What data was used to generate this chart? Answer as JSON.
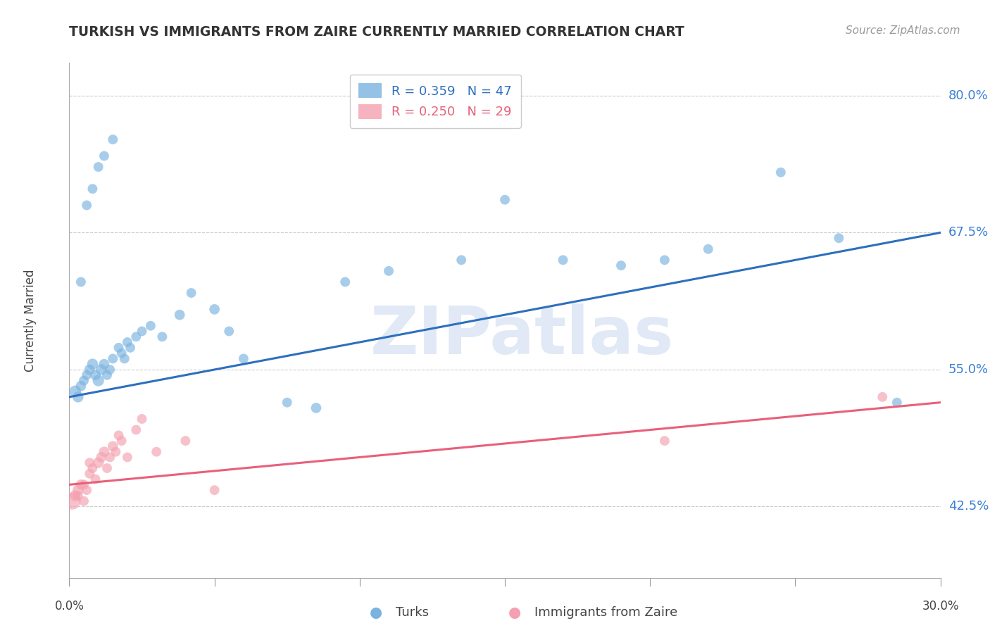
{
  "title": "TURKISH VS IMMIGRANTS FROM ZAIRE CURRENTLY MARRIED CORRELATION CHART",
  "source": "Source: ZipAtlas.com",
  "ylabel": "Currently Married",
  "y_ticks": [
    42.5,
    55.0,
    67.5,
    80.0
  ],
  "x_min": 0.0,
  "x_max": 30.0,
  "y_min": 36.0,
  "y_max": 83.0,
  "legend_entry_1": "R = 0.359   N = 47",
  "legend_entry_2": "R = 0.250   N = 29",
  "legend_labels": [
    "Turks",
    "Immigrants from Zaire"
  ],
  "blue_color": "#7ab3e0",
  "pink_color": "#f4a0b0",
  "blue_line_color": "#2d6fbe",
  "pink_line_color": "#e8607a",
  "ytick_color": "#3a7fd5",
  "blue_scatter_x": [
    0.2,
    0.3,
    0.4,
    0.5,
    0.6,
    0.7,
    0.8,
    0.9,
    1.0,
    1.1,
    1.2,
    1.3,
    1.4,
    1.5,
    1.7,
    1.8,
    1.9,
    2.0,
    2.1,
    2.3,
    2.5,
    2.8,
    3.2,
    3.8,
    4.2,
    5.0,
    5.5,
    6.0,
    7.5,
    8.5,
    9.5,
    11.0,
    13.5,
    15.0,
    17.0,
    19.0,
    20.5,
    22.0,
    24.5,
    26.5,
    28.5,
    0.4,
    0.6,
    0.8,
    1.0,
    1.2,
    1.5
  ],
  "blue_scatter_y": [
    53.0,
    52.5,
    53.5,
    54.0,
    54.5,
    55.0,
    55.5,
    54.5,
    54.0,
    55.0,
    55.5,
    54.5,
    55.0,
    56.0,
    57.0,
    56.5,
    56.0,
    57.5,
    57.0,
    58.0,
    58.5,
    59.0,
    58.0,
    60.0,
    62.0,
    60.5,
    58.5,
    56.0,
    52.0,
    51.5,
    63.0,
    64.0,
    65.0,
    70.5,
    65.0,
    64.5,
    65.0,
    66.0,
    73.0,
    67.0,
    52.0,
    63.0,
    70.0,
    71.5,
    73.5,
    74.5,
    76.0
  ],
  "blue_scatter_s": [
    60,
    50,
    45,
    40,
    40,
    45,
    50,
    45,
    55,
    50,
    45,
    40,
    40,
    40,
    40,
    40,
    40,
    40,
    40,
    40,
    40,
    40,
    40,
    45,
    40,
    45,
    40,
    40,
    40,
    45,
    40,
    40,
    40,
    40,
    40,
    40,
    40,
    40,
    40,
    40,
    40,
    40,
    40,
    40,
    40,
    40,
    40
  ],
  "pink_scatter_x": [
    0.1,
    0.2,
    0.3,
    0.4,
    0.5,
    0.6,
    0.7,
    0.8,
    0.9,
    1.0,
    1.1,
    1.2,
    1.3,
    1.4,
    1.5,
    1.6,
    1.7,
    1.8,
    2.0,
    2.3,
    2.5,
    3.0,
    4.0,
    5.0,
    20.5,
    28.0,
    0.3,
    0.5,
    0.7
  ],
  "pink_scatter_y": [
    43.0,
    43.5,
    44.0,
    44.5,
    43.0,
    44.0,
    45.5,
    46.0,
    45.0,
    46.5,
    47.0,
    47.5,
    46.0,
    47.0,
    48.0,
    47.5,
    49.0,
    48.5,
    47.0,
    49.5,
    50.5,
    47.5,
    48.5,
    44.0,
    48.5,
    52.5,
    43.5,
    44.5,
    46.5
  ],
  "pink_scatter_s": [
    120,
    50,
    50,
    45,
    40,
    40,
    40,
    40,
    40,
    50,
    45,
    45,
    40,
    40,
    45,
    40,
    40,
    40,
    40,
    40,
    40,
    40,
    40,
    40,
    40,
    40,
    40,
    40,
    40
  ],
  "blue_line_x0": 0.0,
  "blue_line_x1": 30.0,
  "blue_line_y0": 52.5,
  "blue_line_y1": 67.5,
  "pink_line_x0": 0.0,
  "pink_line_x1": 30.0,
  "pink_line_y0": 44.5,
  "pink_line_y1": 52.0,
  "watermark_text": "ZIPatlas",
  "background_color": "#ffffff",
  "grid_color": "#cccccc"
}
